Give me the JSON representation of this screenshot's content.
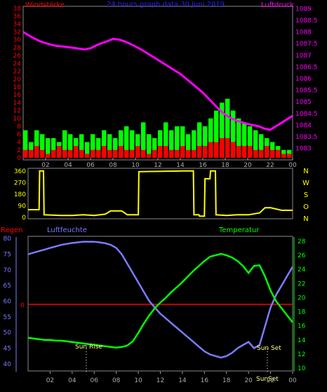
{
  "colors": {
    "wind": "#ff0000",
    "gust": "#00ff00",
    "pressure": "#ff00ff",
    "direction": "#ffff00",
    "humidity": "#7b7bff",
    "temperature": "#00ff00",
    "rain": "#ff0000",
    "axis_gray": "#aaaaaa",
    "title_blue": "#2222ee"
  },
  "chart_data": [
    {
      "type": "bar",
      "title": "24 hours graph data  30 Juni 2019",
      "left_label": "Windstärke",
      "right_label": "Luftdruck",
      "x_ticks": [
        "02",
        "04",
        "06",
        "08",
        "10",
        "12",
        "14",
        "16",
        "18",
        "20",
        "22",
        "00"
      ],
      "y_left_ticks": [
        "0",
        "2",
        "4",
        "6",
        "8",
        "10",
        "12",
        "14",
        "16",
        "18",
        "20",
        "22",
        "24",
        "26",
        "28",
        "30",
        "32",
        "34",
        "36",
        "38"
      ],
      "y_right_ticks": [
        "1083",
        "1083.5",
        "1084",
        "1084.5",
        "1085",
        "1085.5",
        "1086",
        "1086.5",
        "1087",
        "1087.5",
        "1088",
        "1088.5",
        "1089"
      ],
      "ylim_left": [
        0,
        38.5
      ],
      "ylim_right": [
        1082.6,
        1089.1
      ],
      "pressure_series": {
        "name": "Luftdruck",
        "x": [
          0,
          0.5,
          1,
          1.5,
          2,
          2.5,
          3,
          3.5,
          4,
          4.5,
          5,
          5.5,
          6,
          6.5,
          7,
          7.5,
          8,
          8.5,
          9,
          9.5,
          10,
          10.5,
          11,
          11.5,
          12,
          12.5,
          13,
          13.5,
          14,
          14.5,
          15,
          15.5,
          16,
          16.5,
          17,
          17.5,
          18,
          18.5,
          19,
          19.5,
          20,
          20.5,
          21,
          21.5,
          22,
          22.5,
          23,
          23.5,
          24
        ],
        "values": [
          1088.0,
          1087.85,
          1087.72,
          1087.6,
          1087.52,
          1087.45,
          1087.4,
          1087.38,
          1087.35,
          1087.32,
          1087.28,
          1087.25,
          1087.3,
          1087.42,
          1087.52,
          1087.6,
          1087.7,
          1087.68,
          1087.6,
          1087.5,
          1087.38,
          1087.25,
          1087.1,
          1086.95,
          1086.8,
          1086.65,
          1086.5,
          1086.35,
          1086.2,
          1086.0,
          1085.8,
          1085.6,
          1085.4,
          1085.15,
          1084.9,
          1084.65,
          1084.45,
          1084.3,
          1084.2,
          1084.12,
          1084.05,
          1084.0,
          1083.95,
          1083.85,
          1083.8,
          1083.95,
          1084.1,
          1084.25,
          1084.4
        ]
      },
      "wind_levels": [
        2,
        2,
        3,
        2,
        1,
        2,
        3,
        2,
        2,
        3,
        2,
        1,
        2,
        2,
        3,
        2,
        2,
        3,
        2,
        2,
        3,
        2,
        1,
        2,
        3,
        3,
        2,
        2,
        3,
        2,
        2,
        3,
        3,
        4,
        4,
        5,
        5,
        4,
        3,
        3,
        3,
        2,
        2,
        3,
        2,
        2,
        1,
        1
      ],
      "gust_levels": [
        7,
        4,
        7,
        6,
        5,
        5,
        4,
        7,
        6,
        5,
        6,
        4,
        6,
        5,
        7,
        6,
        5,
        7,
        8,
        7,
        6,
        9,
        6,
        5,
        7,
        9,
        7,
        8,
        8,
        6,
        7,
        9,
        8,
        10,
        12,
        14,
        15,
        12,
        10,
        9,
        8,
        7,
        6,
        5,
        4,
        3,
        2,
        2
      ]
    },
    {
      "type": "line",
      "name": "Windrichtung",
      "right_labels": [
        "N",
        "W",
        "S",
        "O",
        "N"
      ],
      "y_ticks": [
        "360",
        "270",
        "180",
        "90",
        "0"
      ],
      "ylim": [
        0,
        370
      ],
      "x": [
        0,
        1,
        1.05,
        1.4,
        1.45,
        3,
        4,
        5,
        6,
        7,
        7.5,
        8.5,
        9,
        10,
        10.05,
        14,
        14.5,
        15,
        15.05,
        15.5,
        15.55,
        16,
        16.05,
        16.5,
        16.55,
        17,
        17.05,
        18,
        19,
        20,
        21,
        21.5,
        22,
        23,
        24
      ],
      "values": [
        60,
        60,
        360,
        360,
        20,
        15,
        15,
        20,
        15,
        25,
        50,
        50,
        20,
        20,
        355,
        360,
        360,
        360,
        20,
        20,
        10,
        10,
        300,
        300,
        360,
        360,
        20,
        15,
        20,
        20,
        35,
        75,
        75,
        55,
        55
      ]
    },
    {
      "type": "line",
      "left_label": "Regen",
      "mid_label": "Luftfeuchte",
      "right_label": "Temperatur",
      "y_left_ticks": [
        "40",
        "45",
        "50",
        "55",
        "60",
        "65",
        "70",
        "75",
        "80"
      ],
      "y_rain_tick": "0",
      "y_right_ticks": [
        "10",
        "12",
        "14",
        "16",
        "18",
        "20",
        "22",
        "24",
        "26",
        "28"
      ],
      "ylim_left": [
        37.5,
        80.5
      ],
      "ylim_right": [
        9.5,
        28.6
      ],
      "annotations": [
        "Sun Rise",
        "Sun Set",
        "SunSet"
      ],
      "humidity": {
        "name": "Luftfeuchte",
        "x": [
          0,
          0.5,
          1,
          1.5,
          2,
          2.5,
          3,
          3.5,
          4,
          4.5,
          5,
          5.5,
          6,
          6.5,
          7,
          7.5,
          8,
          8.5,
          9,
          9.5,
          10,
          10.5,
          11,
          11.5,
          12,
          12.5,
          13,
          13.5,
          14,
          14.5,
          15,
          15.5,
          16,
          16.5,
          17,
          17.5,
          18,
          18.5,
          19,
          19.5,
          20,
          20.5,
          21,
          21.5,
          22,
          22.5,
          23,
          23.5,
          24
        ],
        "values": [
          75,
          75.5,
          76,
          76.5,
          77,
          77.5,
          78,
          78.3,
          78.6,
          78.8,
          79,
          79,
          79,
          78.8,
          78.5,
          78,
          77,
          75,
          72,
          69,
          66,
          63,
          60,
          58,
          56,
          54.5,
          53,
          51.5,
          50,
          48.5,
          47,
          45.5,
          44,
          43,
          42.5,
          42,
          42.5,
          43.5,
          45,
          46,
          47,
          45,
          46,
          52,
          58,
          62,
          65,
          68,
          71
        ]
      },
      "temperature": {
        "name": "Temperatur",
        "x": [
          0,
          0.5,
          1,
          1.5,
          2,
          2.5,
          3,
          3.5,
          4,
          4.5,
          5,
          5.5,
          6,
          6.5,
          7,
          7.5,
          8,
          8.5,
          9,
          9.5,
          10,
          10.5,
          11,
          11.5,
          12,
          12.5,
          13,
          13.5,
          14,
          14.5,
          15,
          15.5,
          16,
          16.5,
          17,
          17.5,
          18,
          18.5,
          19,
          19.5,
          20,
          20.5,
          21,
          21.5,
          22,
          22.5,
          23,
          23.5,
          24
        ],
        "values": [
          14.3,
          14.2,
          14.1,
          14.0,
          14.0,
          13.9,
          13.9,
          13.8,
          13.7,
          13.6,
          13.5,
          13.4,
          13.3,
          13.2,
          13.1,
          13.0,
          12.9,
          13.0,
          13.2,
          13.8,
          15.0,
          16.3,
          17.5,
          18.5,
          19.3,
          20.0,
          20.8,
          21.5,
          22.2,
          23.0,
          23.8,
          24.5,
          25.2,
          25.8,
          26.0,
          26.2,
          26.0,
          25.7,
          25.2,
          24.5,
          23.5,
          24.5,
          24.6,
          23.0,
          21.0,
          19.5,
          18.5,
          17.5,
          16.5
        ]
      },
      "rain": {
        "name": "Regen",
        "value": 0
      }
    }
  ]
}
